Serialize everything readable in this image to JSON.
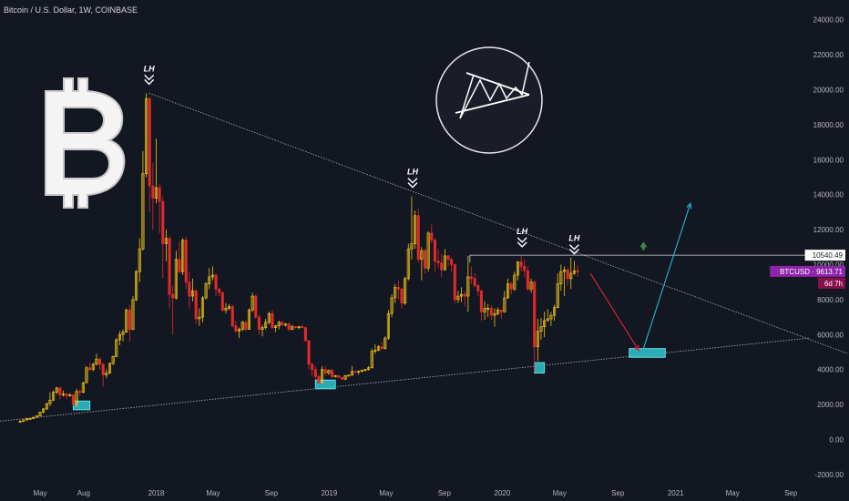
{
  "header": {
    "title": "Bitcoin / U.S. Dollar, 1W, COINBASE"
  },
  "price_scale": {
    "ticks": [
      "24000.00",
      "22000.00",
      "20000.00",
      "18000.00",
      "16000.00",
      "14000.00",
      "12000.00",
      "10000.00",
      "8000.00",
      "6000.00",
      "4000.00",
      "2000.00",
      "0.00",
      "-2000.00"
    ],
    "resistance_label": "10540.49",
    "price_label": "BTCUSD · 9613.71",
    "countdown_label": "6d 7h"
  },
  "time_scale": {
    "ticks": [
      "May",
      "Aug",
      "2018",
      "May",
      "Sep",
      "2019",
      "May",
      "Sep",
      "2020",
      "May",
      "Sep",
      "2021",
      "May",
      "Sep"
    ]
  },
  "annotations": {
    "lh_label": "LH"
  },
  "colors": {
    "background": "#131722",
    "up": "#f0c419",
    "down": "#e02a2a",
    "trendline": "#9aa0ad",
    "support_box": "#2ec4cf",
    "arrow_down": "#e0242f",
    "arrow_up": "#23b8cc",
    "price_tag": "#8e24aa",
    "countdown_tag": "#880e4f",
    "green_marker": "#3a8a4a"
  },
  "icons": {
    "logo": "bitcoin-logo-icon",
    "pattern": "triangle-pattern-icon",
    "chevron": "double-chevron-down-icon"
  },
  "chart_data": {
    "type": "candlestick",
    "symbol": "BTCUSD",
    "interval": "1W",
    "exchange": "COINBASE",
    "ylim": [
      -2000,
      24000
    ],
    "y_ticks": [
      24000,
      22000,
      20000,
      18000,
      16000,
      14000,
      12000,
      10000,
      8000,
      6000,
      4000,
      2000,
      0,
      -2000
    ],
    "last_price": 9613.71,
    "resistance_level": 10540.49,
    "lower_highs": [
      {
        "date": "2017-12-17",
        "price": 19800
      },
      {
        "date": "2019-06-26",
        "price": 13900
      },
      {
        "date": "2020-02-12",
        "price": 10500
      },
      {
        "date": "2020-06-01",
        "price": 10100
      }
    ],
    "support_zones": [
      {
        "start": "2017-07-10",
        "end": "2017-08-14",
        "low": 1700,
        "high": 2200
      },
      {
        "start": "2018-12-03",
        "end": "2019-01-14",
        "low": 2900,
        "high": 3400
      },
      {
        "start": "2020-03-09",
        "end": "2020-03-30",
        "low": 3800,
        "high": 4400
      },
      {
        "start": "2020-09-25",
        "end": "2020-12-10",
        "low": 4700,
        "high": 5200
      }
    ],
    "descending_trendline": [
      {
        "date": "2017-12-17",
        "price": 19800
      },
      {
        "date": "2021-12-31",
        "price": 4900
      }
    ],
    "ascending_trendline": [
      {
        "date": "2017-03-01",
        "price": 1500
      },
      {
        "date": "2021-12-31",
        "price": 5800
      }
    ],
    "projection": [
      {
        "from": {
          "date": "2020-07-05",
          "price": 9500
        },
        "to": {
          "date": "2020-10-15",
          "price": 5100
        },
        "direction": "down"
      },
      {
        "from": {
          "date": "2020-10-25",
          "price": 5200
        },
        "to": {
          "date": "2021-02-01",
          "price": 13500
        },
        "direction": "up"
      }
    ],
    "candles": [
      [
        "2017-03-20",
        1000,
        1100,
        950,
        1050
      ],
      [
        "2017-03-27",
        1050,
        1150,
        1000,
        1120
      ],
      [
        "2017-04-03",
        1120,
        1220,
        1080,
        1180
      ],
      [
        "2017-04-10",
        1180,
        1240,
        1130,
        1200
      ],
      [
        "2017-04-17",
        1200,
        1300,
        1180,
        1270
      ],
      [
        "2017-04-24",
        1270,
        1380,
        1250,
        1350
      ],
      [
        "2017-05-01",
        1350,
        1600,
        1320,
        1560
      ],
      [
        "2017-05-08",
        1560,
        1800,
        1500,
        1750
      ],
      [
        "2017-05-15",
        1750,
        2100,
        1700,
        2050
      ],
      [
        "2017-05-22",
        2050,
        2700,
        1900,
        2250
      ],
      [
        "2017-05-29",
        2250,
        2800,
        2200,
        2700
      ],
      [
        "2017-06-05",
        2700,
        3000,
        2600,
        2950
      ],
      [
        "2017-06-12",
        2950,
        3000,
        2300,
        2550
      ],
      [
        "2017-06-19",
        2550,
        2800,
        2450,
        2600
      ],
      [
        "2017-06-26",
        2600,
        2650,
        2300,
        2500
      ],
      [
        "2017-07-03",
        2500,
        2650,
        2450,
        2550
      ],
      [
        "2017-07-10",
        2550,
        2600,
        1900,
        2000
      ],
      [
        "2017-07-17",
        2000,
        2900,
        1850,
        2750
      ],
      [
        "2017-07-24",
        2750,
        2850,
        2500,
        2700
      ],
      [
        "2017-07-31",
        2700,
        3300,
        2650,
        3250
      ],
      [
        "2017-08-07",
        3250,
        4200,
        3200,
        4100
      ],
      [
        "2017-08-14",
        4100,
        4400,
        3900,
        4000
      ],
      [
        "2017-08-21",
        4000,
        4400,
        3900,
        4300
      ],
      [
        "2017-08-28",
        4300,
        4900,
        4250,
        4600
      ],
      [
        "2017-09-04",
        4600,
        4700,
        4000,
        4300
      ],
      [
        "2017-09-11",
        4300,
        4350,
        3000,
        3700
      ],
      [
        "2017-09-18",
        3700,
        4000,
        3500,
        3800
      ],
      [
        "2017-09-25",
        3800,
        4400,
        3750,
        4350
      ],
      [
        "2017-10-02",
        4350,
        4800,
        4250,
        4750
      ],
      [
        "2017-10-09",
        4750,
        5800,
        4700,
        5700
      ],
      [
        "2017-10-16",
        5700,
        6200,
        5400,
        6000
      ],
      [
        "2017-10-23",
        6000,
        6300,
        5600,
        6150
      ],
      [
        "2017-10-30",
        6150,
        7500,
        6100,
        7400
      ],
      [
        "2017-11-06",
        7400,
        7700,
        5600,
        6300
      ],
      [
        "2017-11-13",
        6300,
        8200,
        6250,
        8000
      ],
      [
        "2017-11-20",
        8000,
        9700,
        7900,
        9600
      ],
      [
        "2017-11-27",
        9600,
        11500,
        9000,
        10900
      ],
      [
        "2017-12-04",
        10900,
        16500,
        10800,
        15200
      ],
      [
        "2017-12-11",
        15200,
        19800,
        15000,
        19500
      ],
      [
        "2017-12-18",
        19500,
        19600,
        13000,
        14500
      ],
      [
        "2017-12-25",
        14500,
        15800,
        12000,
        13800
      ],
      [
        "2018-01-01",
        13800,
        17200,
        13500,
        14400
      ],
      [
        "2018-01-08",
        14400,
        14600,
        11800,
        13600
      ],
      [
        "2018-01-15",
        13600,
        13900,
        9200,
        11200
      ],
      [
        "2018-01-22",
        11200,
        12000,
        10200,
        11500
      ],
      [
        "2018-01-29",
        11500,
        11600,
        7500,
        8300
      ],
      [
        "2018-02-05",
        8300,
        8800,
        6000,
        8100
      ],
      [
        "2018-02-12",
        8100,
        10800,
        8000,
        10300
      ],
      [
        "2018-02-19",
        10300,
        11300,
        9500,
        9600
      ],
      [
        "2018-02-26",
        9600,
        11500,
        9400,
        11400
      ],
      [
        "2018-03-05",
        11400,
        11600,
        8600,
        9000
      ],
      [
        "2018-03-12",
        9000,
        9600,
        7500,
        8200
      ],
      [
        "2018-03-19",
        8200,
        9200,
        7900,
        8500
      ],
      [
        "2018-03-26",
        8500,
        8600,
        6600,
        6900
      ],
      [
        "2018-04-02",
        6900,
        7500,
        6500,
        7000
      ],
      [
        "2018-04-09",
        7000,
        8200,
        6700,
        8100
      ],
      [
        "2018-04-16",
        8100,
        9000,
        8000,
        8900
      ],
      [
        "2018-04-23",
        8900,
        9800,
        8600,
        9300
      ],
      [
        "2018-04-30",
        9300,
        9900,
        9100,
        9400
      ],
      [
        "2018-05-07",
        9400,
        9500,
        8200,
        8600
      ],
      [
        "2018-05-14",
        8600,
        8700,
        8200,
        8400
      ],
      [
        "2018-05-21",
        8400,
        8450,
        7300,
        7400
      ],
      [
        "2018-05-28",
        7400,
        7800,
        7200,
        7500
      ],
      [
        "2018-06-04",
        7500,
        7750,
        7400,
        7600
      ],
      [
        "2018-06-11",
        7600,
        7700,
        6400,
        6500
      ],
      [
        "2018-06-18",
        6500,
        6800,
        6100,
        6200
      ],
      [
        "2018-06-25",
        6200,
        6400,
        5800,
        6300
      ],
      [
        "2018-07-02",
        6300,
        6800,
        6200,
        6700
      ],
      [
        "2018-07-09",
        6700,
        6800,
        6200,
        6300
      ],
      [
        "2018-07-16",
        6300,
        7500,
        6300,
        7400
      ],
      [
        "2018-07-23",
        7400,
        8400,
        7300,
        8200
      ],
      [
        "2018-07-30",
        8200,
        8300,
        6900,
        7000
      ],
      [
        "2018-08-06",
        7000,
        7150,
        6000,
        6300
      ],
      [
        "2018-08-13",
        6300,
        6550,
        5900,
        6400
      ],
      [
        "2018-08-20",
        6400,
        6900,
        6300,
        6700
      ],
      [
        "2018-08-27",
        6700,
        7300,
        6600,
        7200
      ],
      [
        "2018-09-03",
        7200,
        7400,
        6300,
        6400
      ],
      [
        "2018-09-10",
        6400,
        6550,
        6150,
        6500
      ],
      [
        "2018-09-17",
        6500,
        6800,
        6300,
        6700
      ],
      [
        "2018-09-24",
        6700,
        6750,
        6500,
        6550
      ],
      [
        "2018-10-01",
        6550,
        6650,
        6450,
        6600
      ],
      [
        "2018-10-08",
        6600,
        6700,
        6200,
        6300
      ],
      [
        "2018-10-15",
        6300,
        6550,
        6250,
        6450
      ],
      [
        "2018-10-22",
        6450,
        6500,
        6350,
        6400
      ],
      [
        "2018-10-29",
        6400,
        6500,
        6300,
        6450
      ],
      [
        "2018-11-05",
        6450,
        6550,
        6350,
        6400
      ],
      [
        "2018-11-12",
        6400,
        6450,
        5600,
        5650
      ],
      [
        "2018-11-19",
        5650,
        5700,
        4000,
        4300
      ],
      [
        "2018-11-26",
        4300,
        4400,
        3600,
        4000
      ],
      [
        "2018-12-03",
        4000,
        4200,
        3450,
        3600
      ],
      [
        "2018-12-10",
        3600,
        3700,
        3200,
        3250
      ],
      [
        "2018-12-17",
        3250,
        4200,
        3200,
        4000
      ],
      [
        "2018-12-24",
        4000,
        4200,
        3650,
        3800
      ],
      [
        "2018-12-31",
        3800,
        4000,
        3700,
        3950
      ],
      [
        "2019-01-07",
        3950,
        4050,
        3500,
        3600
      ],
      [
        "2019-01-14",
        3600,
        3700,
        3550,
        3650
      ],
      [
        "2019-01-21",
        3650,
        3700,
        3500,
        3550
      ],
      [
        "2019-01-28",
        3550,
        3600,
        3400,
        3450
      ],
      [
        "2019-02-04",
        3450,
        3700,
        3400,
        3650
      ],
      [
        "2019-02-11",
        3650,
        3700,
        3600,
        3680
      ],
      [
        "2019-02-18",
        3680,
        4200,
        3650,
        3900
      ],
      [
        "2019-02-25",
        3900,
        3950,
        3750,
        3850
      ],
      [
        "2019-03-04",
        3850,
        3950,
        3700,
        3900
      ],
      [
        "2019-03-11",
        3900,
        4000,
        3850,
        3950
      ],
      [
        "2019-03-18",
        3950,
        4050,
        3900,
        4000
      ],
      [
        "2019-03-25",
        4000,
        4200,
        3950,
        4100
      ],
      [
        "2019-04-01",
        4100,
        5200,
        4080,
        5050
      ],
      [
        "2019-04-08",
        5050,
        5450,
        4900,
        5100
      ],
      [
        "2019-04-15",
        5100,
        5400,
        5050,
        5300
      ],
      [
        "2019-04-22",
        5300,
        5600,
        5100,
        5200
      ],
      [
        "2019-04-29",
        5200,
        5900,
        5150,
        5800
      ],
      [
        "2019-05-06",
        5800,
        7400,
        5700,
        7200
      ],
      [
        "2019-05-13",
        7200,
        8300,
        7000,
        8100
      ],
      [
        "2019-05-20",
        8100,
        8900,
        7800,
        8700
      ],
      [
        "2019-05-27",
        8700,
        9100,
        8000,
        8600
      ],
      [
        "2019-06-03",
        8600,
        8700,
        7500,
        7800
      ],
      [
        "2019-06-10",
        7800,
        9300,
        7700,
        9200
      ],
      [
        "2019-06-17",
        9200,
        11200,
        9100,
        10900
      ],
      [
        "2019-06-24",
        10900,
        13900,
        10300,
        11200
      ],
      [
        "2019-07-01",
        11200,
        13100,
        10900,
        12800
      ],
      [
        "2019-07-08",
        12800,
        13200,
        10100,
        10300
      ],
      [
        "2019-07-15",
        10300,
        11000,
        9100,
        10800
      ],
      [
        "2019-07-22",
        10800,
        10900,
        9500,
        9800
      ],
      [
        "2019-07-29",
        9800,
        11900,
        9600,
        11800
      ],
      [
        "2019-08-05",
        11800,
        12300,
        11200,
        11400
      ],
      [
        "2019-08-12",
        11400,
        11500,
        9600,
        10200
      ],
      [
        "2019-08-19",
        10200,
        10900,
        9800,
        10100
      ],
      [
        "2019-08-26",
        10100,
        10600,
        9300,
        9700
      ],
      [
        "2019-09-02",
        9700,
        10900,
        9700,
        10500
      ],
      [
        "2019-09-09",
        10500,
        10550,
        9900,
        10300
      ],
      [
        "2019-09-16",
        10300,
        10400,
        9600,
        10000
      ],
      [
        "2019-09-23",
        10000,
        10050,
        7800,
        8000
      ],
      [
        "2019-09-30",
        8000,
        8500,
        7800,
        8200
      ],
      [
        "2019-10-07",
        8200,
        8700,
        7850,
        8300
      ],
      [
        "2019-10-14",
        8300,
        8450,
        7600,
        8200
      ],
      [
        "2019-10-21",
        8200,
        10500,
        7300,
        9300
      ],
      [
        "2019-10-28",
        9300,
        9900,
        8900,
        9200
      ],
      [
        "2019-11-04",
        9200,
        9500,
        8700,
        8800
      ],
      [
        "2019-11-11",
        8800,
        8900,
        8200,
        8500
      ],
      [
        "2019-11-18",
        8500,
        8550,
        6800,
        7300
      ],
      [
        "2019-11-25",
        7300,
        7900,
        6850,
        7500
      ],
      [
        "2019-12-02",
        7500,
        7750,
        7000,
        7500
      ],
      [
        "2019-12-09",
        7500,
        7650,
        6850,
        7100
      ],
      [
        "2019-12-16",
        7100,
        7500,
        6450,
        7200
      ],
      [
        "2019-12-23",
        7200,
        7550,
        7100,
        7400
      ],
      [
        "2019-12-30",
        7400,
        7450,
        6900,
        7300
      ],
      [
        "2020-01-06",
        7300,
        8500,
        7250,
        8100
      ],
      [
        "2020-01-13",
        8100,
        9200,
        8050,
        8900
      ],
      [
        "2020-01-20",
        8900,
        9000,
        8300,
        8600
      ],
      [
        "2020-01-27",
        8600,
        9600,
        8500,
        9400
      ],
      [
        "2020-02-03",
        9400,
        10200,
        9100,
        10150
      ],
      [
        "2020-02-10",
        10150,
        10500,
        9600,
        9900
      ],
      [
        "2020-02-17",
        9900,
        10300,
        9300,
        9650
      ],
      [
        "2020-02-24",
        9650,
        9900,
        8500,
        8600
      ],
      [
        "2020-03-02",
        8600,
        9200,
        8400,
        9000
      ],
      [
        "2020-03-09",
        9000,
        9100,
        3850,
        5300
      ],
      [
        "2020-03-16",
        5300,
        6900,
        4500,
        6200
      ],
      [
        "2020-03-23",
        6200,
        6950,
        5700,
        6450
      ],
      [
        "2020-03-30",
        6450,
        7300,
        5850,
        6800
      ],
      [
        "2020-04-06",
        6800,
        7450,
        6750,
        6900
      ],
      [
        "2020-04-13",
        6900,
        7300,
        6500,
        7100
      ],
      [
        "2020-04-20",
        7100,
        7700,
        6800,
        7550
      ],
      [
        "2020-04-27",
        7550,
        9500,
        7500,
        8900
      ],
      [
        "2020-05-04",
        8900,
        10000,
        8500,
        9600
      ],
      [
        "2020-05-11",
        9600,
        9900,
        8200,
        9700
      ],
      [
        "2020-05-18",
        9700,
        9850,
        8800,
        9200
      ],
      [
        "2020-05-25",
        9200,
        10400,
        8600,
        9500
      ],
      [
        "2020-06-01",
        9500,
        10200,
        9400,
        9650
      ],
      [
        "2020-06-08",
        9650,
        9950,
        9300,
        9613.71
      ]
    ]
  }
}
